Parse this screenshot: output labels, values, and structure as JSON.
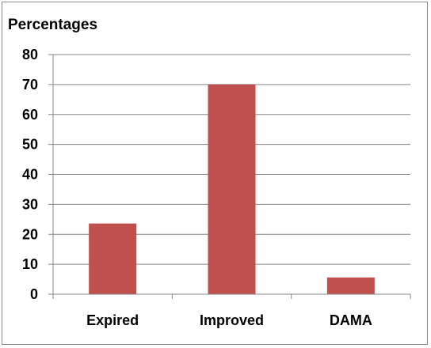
{
  "chart_data": {
    "type": "bar",
    "title": "",
    "ylabel": "Percentages",
    "xlabel": "",
    "categories": [
      "Expired",
      "Improved",
      "DAMA"
    ],
    "values": [
      23.6,
      70,
      5.6
    ],
    "ylim": [
      0,
      80
    ],
    "yticks": [
      "0",
      "10",
      "20",
      "30",
      "40",
      "50",
      "60",
      "70",
      "80"
    ],
    "grid": true,
    "legend": "none",
    "bar_color": "#c0504d",
    "grid_color": "#868686"
  }
}
